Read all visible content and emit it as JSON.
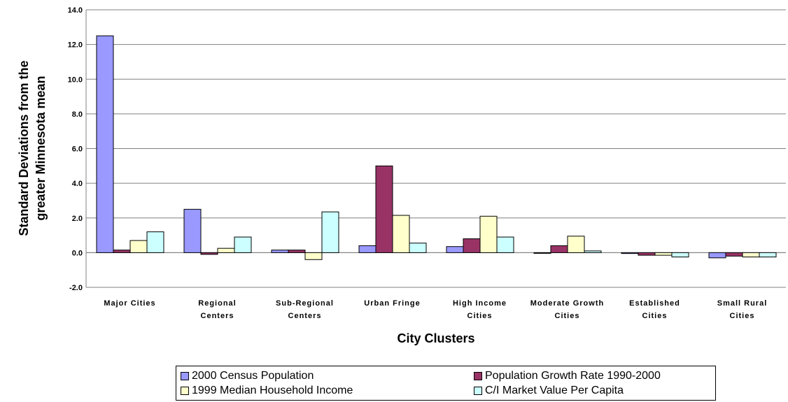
{
  "chart_data": {
    "type": "bar",
    "categories": [
      [
        "Major Cities"
      ],
      [
        "Regional",
        "Centers"
      ],
      [
        "Sub-Regional",
        "Centers"
      ],
      [
        "Urban Fringe"
      ],
      [
        "High Income",
        "Cities"
      ],
      [
        "Moderate Growth",
        "Cities"
      ],
      [
        "Established",
        "Cities"
      ],
      [
        "Small Rural",
        "Cities"
      ]
    ],
    "series": [
      {
        "name": "2000 Census Population",
        "color": "#9999ff",
        "values": [
          12.5,
          2.5,
          0.15,
          0.4,
          0.35,
          0.0,
          -0.05,
          -0.3
        ]
      },
      {
        "name": "Population Growth Rate 1990-2000",
        "color": "#993366",
        "values": [
          0.15,
          -0.1,
          0.15,
          5.0,
          0.8,
          0.4,
          -0.15,
          -0.2
        ]
      },
      {
        "name": "1999 Median Household Income",
        "color": "#ffffcc",
        "values": [
          0.7,
          0.25,
          -0.4,
          2.15,
          2.1,
          0.95,
          -0.15,
          -0.25
        ]
      },
      {
        "name": "C/I Market Value Per Capita",
        "color": "#ccffff",
        "values": [
          1.2,
          0.9,
          2.35,
          0.55,
          0.9,
          0.1,
          -0.25,
          -0.25
        ]
      }
    ],
    "xlabel": "City Clusters",
    "ylabel": [
      "Standard Deviations from the",
      "greater Minnesota mean"
    ],
    "ylim": [
      -2.0,
      14.0
    ],
    "yticks": [
      "14.0",
      "12.0",
      "10.0",
      "8.0",
      "6.0",
      "4.0",
      "2.0",
      "0.0",
      "-2.0"
    ],
    "grid": "horizontal",
    "legend_placement": "bottom"
  }
}
